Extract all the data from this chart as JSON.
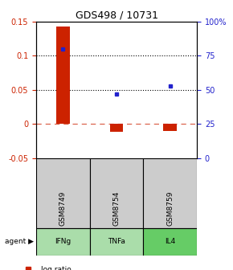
{
  "title": "GDS498 / 10731",
  "samples": [
    "GSM8749",
    "GSM8754",
    "GSM8759"
  ],
  "agents": [
    "IFNg",
    "TNFa",
    "IL4"
  ],
  "log_ratios": [
    0.143,
    -0.012,
    -0.011
  ],
  "percentile_ranks": [
    80,
    47,
    53
  ],
  "left_ylim": [
    -0.05,
    0.15
  ],
  "right_ylim": [
    0,
    100
  ],
  "left_yticks": [
    -0.05,
    0,
    0.05,
    0.1,
    0.15
  ],
  "right_yticks": [
    0,
    25,
    50,
    75,
    100
  ],
  "right_yticklabels": [
    "0",
    "25",
    "50",
    "75",
    "100%"
  ],
  "dotted_lines": [
    0.05,
    0.1
  ],
  "dashed_line": 0,
  "bar_color": "#cc2200",
  "square_color": "#2222cc",
  "agent_colors": [
    "#aaddaa",
    "#bbeeaa",
    "#77cc77"
  ],
  "sample_bg_color": "#cccccc",
  "bar_width": 0.25,
  "title_fontsize": 9,
  "tick_fontsize": 7,
  "legend_fontsize": 6.5
}
